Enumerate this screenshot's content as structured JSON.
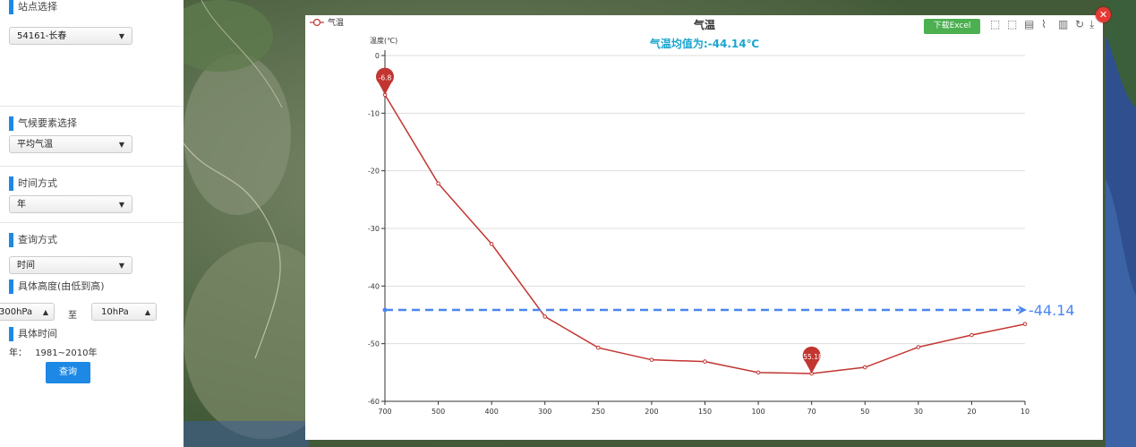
{
  "sidebar": {
    "station": {
      "title": "站点选择",
      "value": "54161-长春"
    },
    "element": {
      "title": "气候要素选择",
      "value": "平均气温"
    },
    "time_mode": {
      "title": "时间方式",
      "value": "年"
    },
    "query_mode": {
      "title": "查询方式",
      "value": "时间"
    },
    "height": {
      "title": "具体高度(由低到高)",
      "from": "300hPa",
      "to_label": "至",
      "to": "10hPa"
    },
    "period": {
      "title": "具体时间",
      "prefix": "年：",
      "value": "1981~2010年"
    },
    "query_button": "查询"
  },
  "popup": {
    "legend": "气温",
    "title": "气温",
    "subtitle": "气温均值为:-44.14℃",
    "download_button": "下载Excel",
    "toolbox_icons": [
      "zoom-icon",
      "zoom-reset-icon",
      "data-view-icon",
      "line-chart-icon",
      "bar-chart-icon",
      "restore-icon",
      "save-image-icon"
    ]
  },
  "colors": {
    "accent": "#1e88e5",
    "series": "#c23531",
    "mean_line": "#4a86f0",
    "download": "#4caf50",
    "close": "#e53935"
  },
  "chart_data": {
    "type": "line",
    "title": "气温",
    "subtitle": "气温均值为:-44.14℃",
    "ylabel": "温度(℃)",
    "xlabel": "",
    "categories": [
      "700",
      "500",
      "400",
      "300",
      "250",
      "200",
      "150",
      "100",
      "70",
      "50",
      "30",
      "20",
      "10"
    ],
    "series": [
      {
        "name": "气温",
        "values": [
          -6.8,
          -22.2,
          -32.7,
          -45.3,
          -50.7,
          -52.8,
          -53.1,
          -55.0,
          -55.18,
          -54.1,
          -50.6,
          -48.5,
          -46.6
        ]
      }
    ],
    "ylim": [
      -60,
      0
    ],
    "yticks": [
      0,
      -10,
      -20,
      -30,
      -40,
      -50,
      -60
    ],
    "max_marker": {
      "category": "700",
      "value": -6.8,
      "label": "-6.8"
    },
    "min_marker": {
      "category": "70",
      "value": -55.18,
      "label": "-55.18"
    },
    "mean_line": {
      "value": -44.14,
      "label": "-44.14"
    },
    "grid": true,
    "legend_position": "top-left"
  }
}
